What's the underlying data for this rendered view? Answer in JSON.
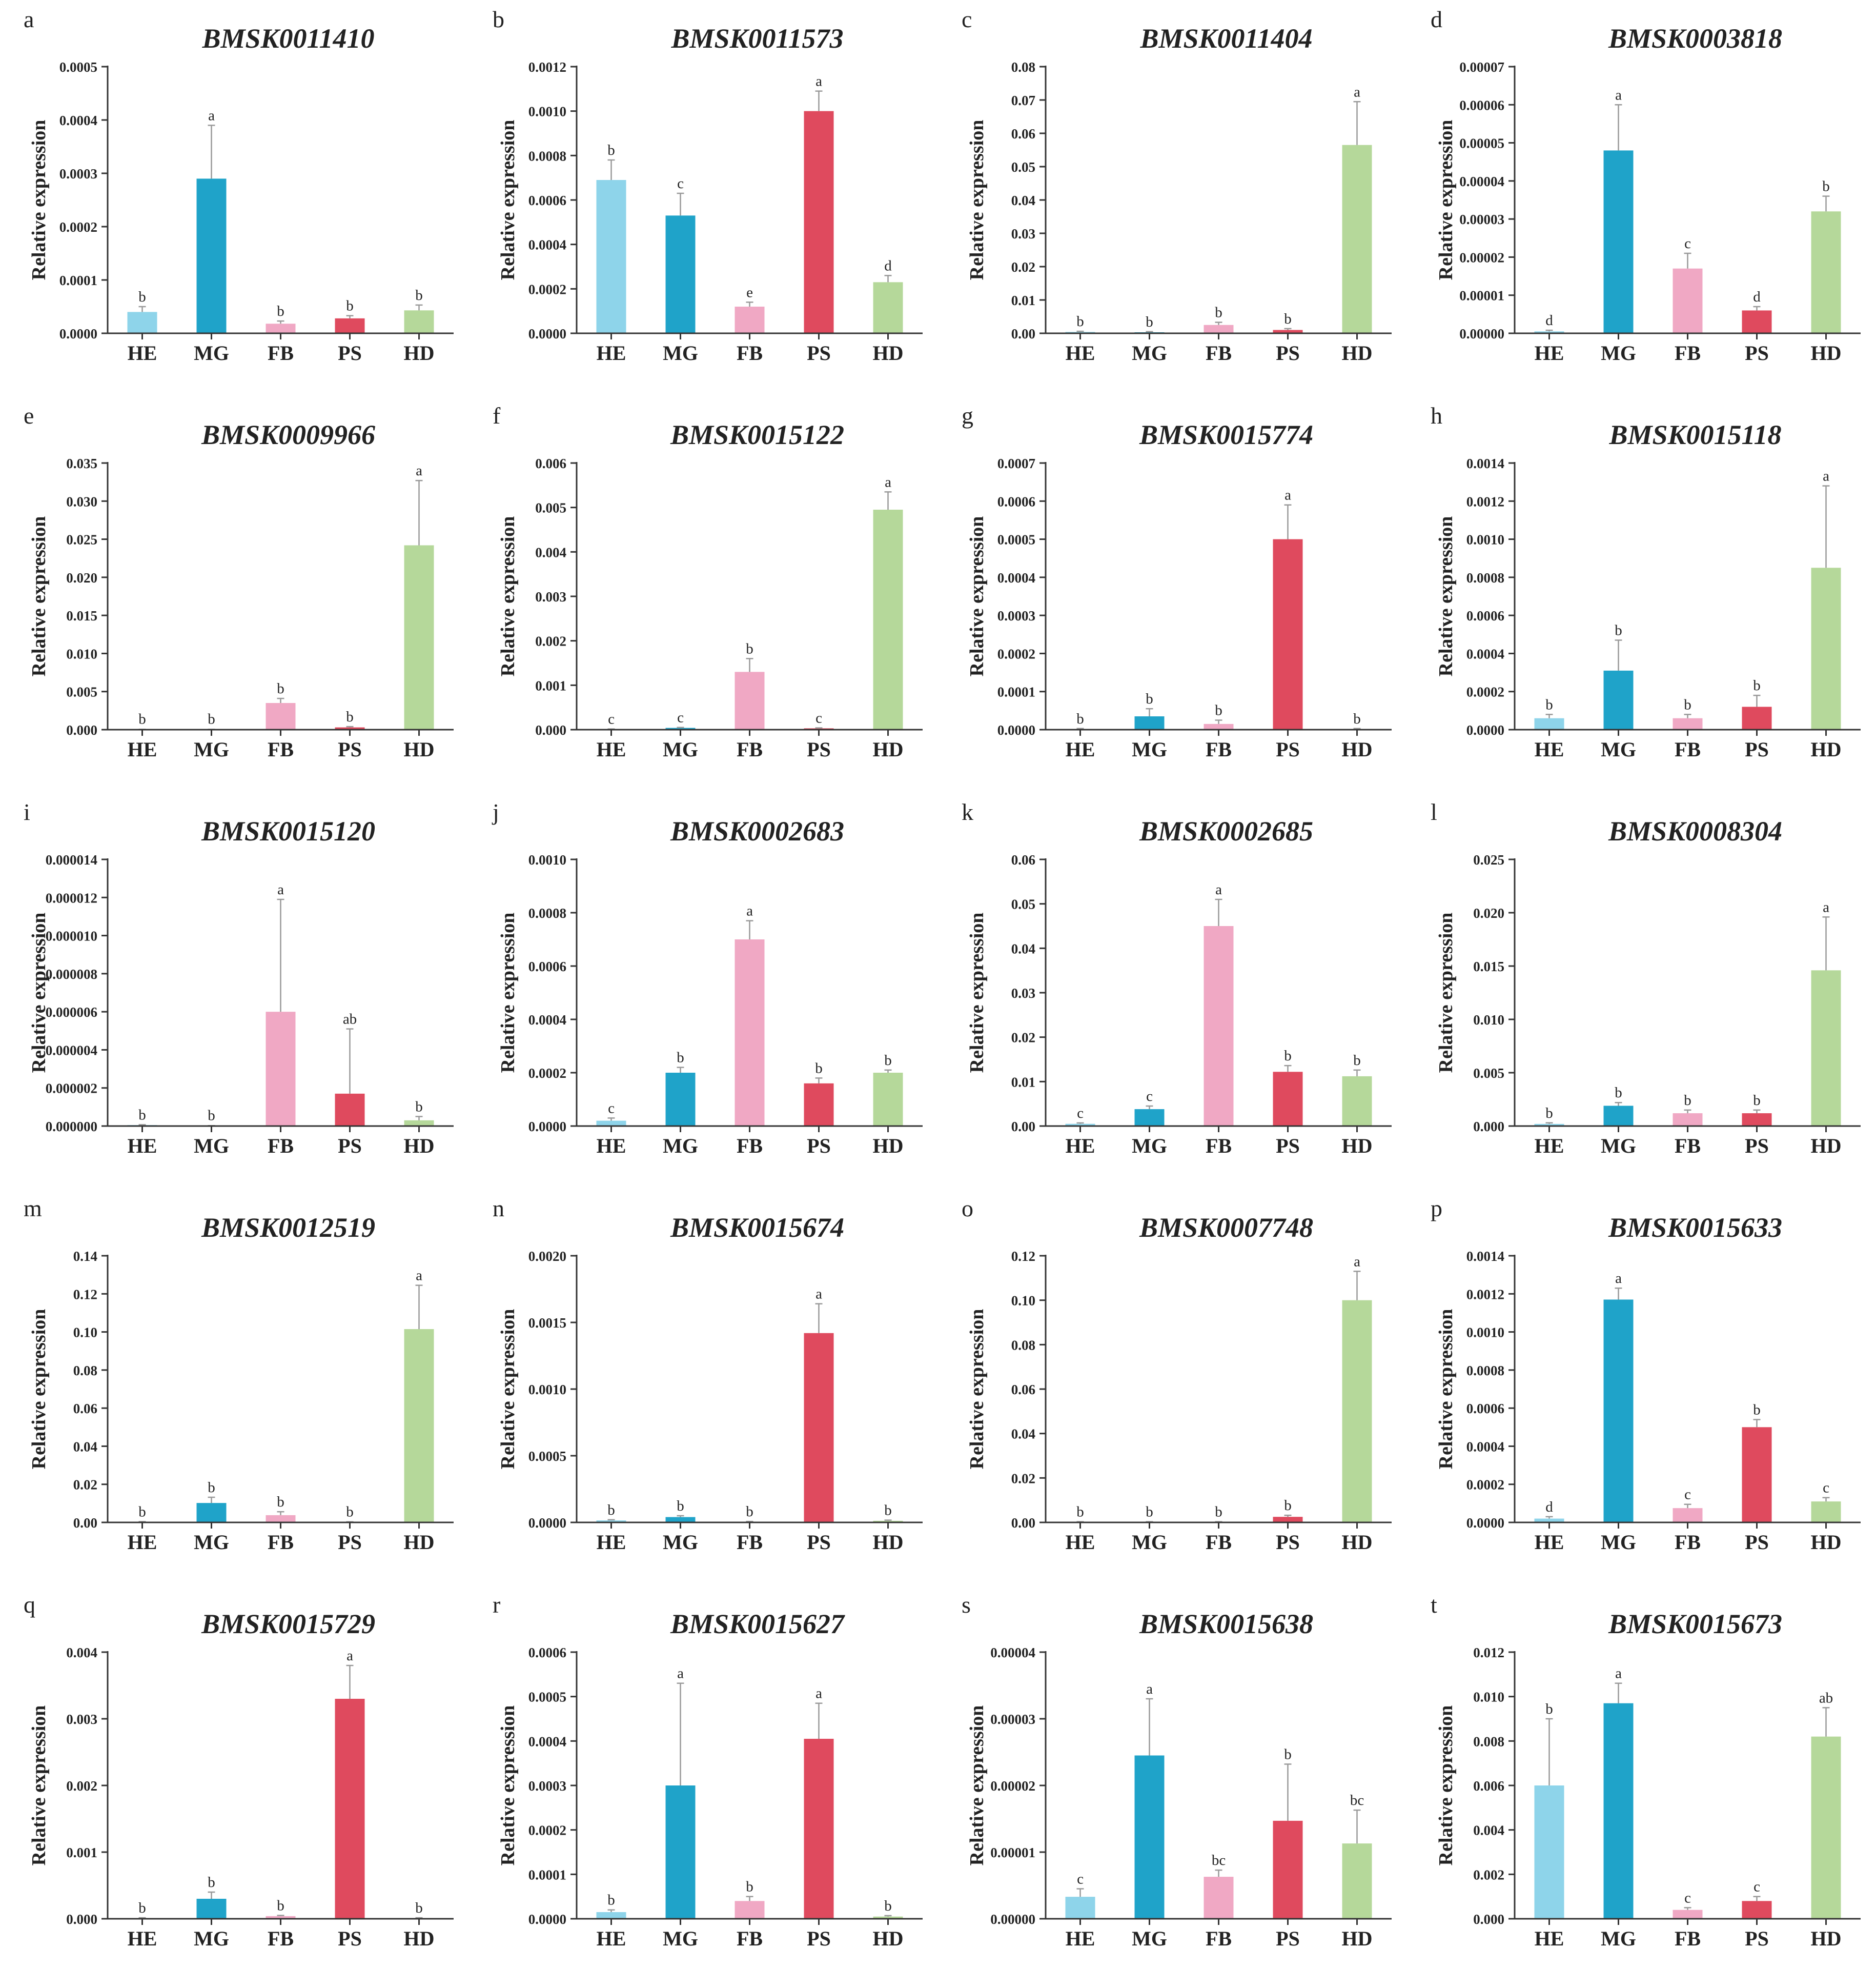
{
  "figure": {
    "ylabel": "Relative expression",
    "categories": [
      "HE",
      "MG",
      "FB",
      "PS",
      "HD"
    ],
    "colors": {
      "HE": "#8ed4ea",
      "MG": "#1fa3c9",
      "FB": "#f0a8c4",
      "PS": "#df4a5e",
      "HD": "#b5d89a"
    },
    "axis_color": "#333333",
    "error_color": "#999999"
  },
  "chart_data": [
    {
      "type": "bar",
      "panel": "a",
      "title": "BMSK0011410",
      "ylabel": "Relative expression",
      "categories": [
        "HE",
        "MG",
        "FB",
        "PS",
        "HD"
      ],
      "ylim": [
        0,
        0.0005
      ],
      "ticks": [
        "0.0000",
        "0.0001",
        "0.0002",
        "0.0003",
        "0.0004",
        "0.0005"
      ],
      "values": [
        4e-05,
        0.00029,
        1.8e-05,
        2.8e-05,
        4.3e-05
      ],
      "errors": [
        1e-05,
        0.0001,
        5e-06,
        5e-06,
        1e-05
      ],
      "letters": [
        "b",
        "a",
        "b",
        "b",
        "b"
      ]
    },
    {
      "type": "bar",
      "panel": "b",
      "title": "BMSK0011573",
      "ylabel": "Relative expression",
      "categories": [
        "HE",
        "MG",
        "FB",
        "PS",
        "HD"
      ],
      "ylim": [
        0,
        0.0012
      ],
      "ticks": [
        "0.0000",
        "0.0002",
        "0.0004",
        "0.0006",
        "0.0008",
        "0.0010",
        "0.0012"
      ],
      "values": [
        0.00069,
        0.00053,
        0.00012,
        0.001,
        0.00023
      ],
      "errors": [
        9e-05,
        0.0001,
        2e-05,
        9e-05,
        3e-05
      ],
      "letters": [
        "b",
        "c",
        "e",
        "a",
        "d"
      ]
    },
    {
      "type": "bar",
      "panel": "c",
      "title": "BMSK0011404",
      "ylabel": "Relative expression",
      "categories": [
        "HE",
        "MG",
        "FB",
        "PS",
        "HD"
      ],
      "ylim": [
        0,
        0.08
      ],
      "ticks": [
        "0.00",
        "0.01",
        "0.02",
        "0.03",
        "0.04",
        "0.05",
        "0.06",
        "0.07",
        "0.08"
      ],
      "values": [
        0.0004,
        0.0003,
        0.0025,
        0.001,
        0.0565
      ],
      "errors": [
        0.0002,
        0.0002,
        0.0008,
        0.0004,
        0.013
      ],
      "letters": [
        "b",
        "b",
        "b",
        "b",
        "a"
      ]
    },
    {
      "type": "bar",
      "panel": "d",
      "title": "BMSK0003818",
      "ylabel": "Relative expression",
      "categories": [
        "HE",
        "MG",
        "FB",
        "PS",
        "HD"
      ],
      "ylim": [
        0,
        7e-05
      ],
      "ticks": [
        "0.00000",
        "0.00001",
        "0.00002",
        "0.00003",
        "0.00004",
        "0.00005",
        "0.00006",
        "0.00007"
      ],
      "values": [
        5e-07,
        4.8e-05,
        1.7e-05,
        6e-06,
        3.2e-05
      ],
      "errors": [
        3e-07,
        1.2e-05,
        4e-06,
        1e-06,
        4e-06
      ],
      "letters": [
        "d",
        "a",
        "c",
        "d",
        "b"
      ]
    },
    {
      "type": "bar",
      "panel": "e",
      "title": "BMSK0009966",
      "ylabel": "Relative expression",
      "categories": [
        "HE",
        "MG",
        "FB",
        "PS",
        "HD"
      ],
      "ylim": [
        0,
        0.035
      ],
      "ticks": [
        "0.000",
        "0.005",
        "0.010",
        "0.015",
        "0.020",
        "0.025",
        "0.030",
        "0.035"
      ],
      "values": [
        3e-05,
        3e-05,
        0.0035,
        0.0003,
        0.0242
      ],
      "errors": [
        1e-05,
        1e-05,
        0.0006,
        0.0001,
        0.0085
      ],
      "letters": [
        "b",
        "b",
        "b",
        "b",
        "a"
      ]
    },
    {
      "type": "bar",
      "panel": "f",
      "title": "BMSK0015122",
      "ylabel": "Relative expression",
      "categories": [
        "HE",
        "MG",
        "FB",
        "PS",
        "HD"
      ],
      "ylim": [
        0,
        0.006
      ],
      "ticks": [
        "0.000",
        "0.001",
        "0.002",
        "0.003",
        "0.004",
        "0.005",
        "0.006"
      ],
      "values": [
        1e-05,
        4e-05,
        0.0013,
        3e-05,
        0.00495
      ],
      "errors": [
        5e-06,
        1e-05,
        0.0003,
        1e-05,
        0.0004
      ],
      "letters": [
        "c",
        "c",
        "b",
        "c",
        "a"
      ]
    },
    {
      "type": "bar",
      "panel": "g",
      "title": "BMSK0015774",
      "ylabel": "Relative expression",
      "categories": [
        "HE",
        "MG",
        "FB",
        "PS",
        "HD"
      ],
      "ylim": [
        0,
        0.0007
      ],
      "ticks": [
        "0.0000",
        "0.0001",
        "0.0002",
        "0.0003",
        "0.0004",
        "0.0005",
        "0.0006",
        "0.0007"
      ],
      "values": [
        2e-06,
        3.5e-05,
        1.5e-05,
        0.0005,
        2e-06
      ],
      "errors": [
        1e-06,
        2e-05,
        1e-05,
        9e-05,
        1e-06
      ],
      "letters": [
        "b",
        "b",
        "b",
        "a",
        "b"
      ]
    },
    {
      "type": "bar",
      "panel": "h",
      "title": "BMSK0015118",
      "ylabel": "Relative expression",
      "categories": [
        "HE",
        "MG",
        "FB",
        "PS",
        "HD"
      ],
      "ylim": [
        0,
        0.0014
      ],
      "ticks": [
        "0.0000",
        "0.0002",
        "0.0004",
        "0.0006",
        "0.0008",
        "0.0010",
        "0.0012",
        "0.0014"
      ],
      "values": [
        6e-05,
        0.00031,
        6e-05,
        0.00012,
        0.00085
      ],
      "errors": [
        2e-05,
        0.00016,
        2e-05,
        6e-05,
        0.00043
      ],
      "letters": [
        "b",
        "b",
        "b",
        "b",
        "a"
      ]
    },
    {
      "type": "bar",
      "panel": "i",
      "title": "BMSK0015120",
      "ylabel": "Relative expression",
      "categories": [
        "HE",
        "MG",
        "FB",
        "PS",
        "HD"
      ],
      "ylim": [
        0,
        1.4e-05
      ],
      "ticks": [
        "0.000000",
        "0.000002",
        "0.000004",
        "0.000006",
        "0.000008",
        "0.000010",
        "0.000012",
        "0.000014"
      ],
      "values": [
        5e-08,
        1e-08,
        6e-06,
        1.7e-06,
        3e-07
      ],
      "errors": [
        2e-08,
        1e-08,
        5.9e-06,
        3.4e-06,
        2e-07
      ],
      "letters": [
        "b",
        "b",
        "a",
        "ab",
        "b"
      ]
    },
    {
      "type": "bar",
      "panel": "j",
      "title": "BMSK0002683",
      "ylabel": "Relative expression",
      "categories": [
        "HE",
        "MG",
        "FB",
        "PS",
        "HD"
      ],
      "ylim": [
        0,
        0.001
      ],
      "ticks": [
        "0.0000",
        "0.0002",
        "0.0004",
        "0.0006",
        "0.0008",
        "0.0010"
      ],
      "values": [
        2e-05,
        0.0002,
        0.0007,
        0.00016,
        0.0002
      ],
      "errors": [
        1e-05,
        2e-05,
        7e-05,
        2e-05,
        1e-05
      ],
      "letters": [
        "c",
        "b",
        "a",
        "b",
        "b"
      ]
    },
    {
      "type": "bar",
      "panel": "k",
      "title": "BMSK0002685",
      "ylabel": "Relative expression",
      "categories": [
        "HE",
        "MG",
        "FB",
        "PS",
        "HD"
      ],
      "ylim": [
        0,
        0.06
      ],
      "ticks": [
        "0.00",
        "0.01",
        "0.02",
        "0.03",
        "0.04",
        "0.05",
        "0.06"
      ],
      "values": [
        0.0005,
        0.0038,
        0.045,
        0.0122,
        0.0112
      ],
      "errors": [
        0.0002,
        0.0007,
        0.006,
        0.0014,
        0.0014
      ],
      "letters": [
        "c",
        "c",
        "a",
        "b",
        "b"
      ]
    },
    {
      "type": "bar",
      "panel": "l",
      "title": "BMSK0008304",
      "ylabel": "Relative expression",
      "categories": [
        "HE",
        "MG",
        "FB",
        "PS",
        "HD"
      ],
      "ylim": [
        0,
        0.025
      ],
      "ticks": [
        "0.000",
        "0.005",
        "0.010",
        "0.015",
        "0.020",
        "0.025"
      ],
      "values": [
        0.0002,
        0.0019,
        0.0012,
        0.0012,
        0.0146
      ],
      "errors": [
        0.0001,
        0.0003,
        0.0003,
        0.0003,
        0.005
      ],
      "letters": [
        "b",
        "b",
        "b",
        "b",
        "a"
      ]
    },
    {
      "type": "bar",
      "panel": "m",
      "title": "BMSK0012519",
      "ylabel": "Relative expression",
      "categories": [
        "HE",
        "MG",
        "FB",
        "PS",
        "HD"
      ],
      "ylim": [
        0,
        0.14
      ],
      "ticks": [
        "0.00",
        "0.02",
        "0.04",
        "0.06",
        "0.08",
        "0.10",
        "0.12",
        "0.14"
      ],
      "values": [
        0.0003,
        0.0102,
        0.0038,
        0.0002,
        0.1015
      ],
      "errors": [
        0.0001,
        0.003,
        0.0018,
        0.0001,
        0.023
      ],
      "letters": [
        "b",
        "b",
        "b",
        "b",
        "a"
      ]
    },
    {
      "type": "bar",
      "panel": "n",
      "title": "BMSK0015674",
      "ylabel": "Relative expression",
      "categories": [
        "HE",
        "MG",
        "FB",
        "PS",
        "HD"
      ],
      "ylim": [
        0,
        0.002
      ],
      "ticks": [
        "0.0000",
        "0.0005",
        "0.0010",
        "0.0015",
        "0.0020"
      ],
      "values": [
        1.5e-05,
        4e-05,
        5e-06,
        0.00142,
        1.2e-05
      ],
      "errors": [
        5e-06,
        1e-05,
        2e-06,
        0.00022,
        5e-06
      ],
      "letters": [
        "b",
        "b",
        "b",
        "a",
        "b"
      ]
    },
    {
      "type": "bar",
      "panel": "o",
      "title": "BMSK0007748",
      "ylabel": "Relative expression",
      "categories": [
        "HE",
        "MG",
        "FB",
        "PS",
        "HD"
      ],
      "ylim": [
        0,
        0.12
      ],
      "ticks": [
        "0.00",
        "0.02",
        "0.04",
        "0.06",
        "0.08",
        "0.10",
        "0.12"
      ],
      "values": [
        0.0002,
        0.0002,
        0.0002,
        0.0025,
        0.1
      ],
      "errors": [
        0.0001,
        0.0001,
        0.0001,
        0.0007,
        0.013
      ],
      "letters": [
        "b",
        "b",
        "b",
        "b",
        "a"
      ]
    },
    {
      "type": "bar",
      "panel": "p",
      "title": "BMSK0015633",
      "ylabel": "Relative expression",
      "categories": [
        "HE",
        "MG",
        "FB",
        "PS",
        "HD"
      ],
      "ylim": [
        0,
        0.0014
      ],
      "ticks": [
        "0.0000",
        "0.0002",
        "0.0004",
        "0.0006",
        "0.0008",
        "0.0010",
        "0.0012",
        "0.0014"
      ],
      "values": [
        2e-05,
        0.00117,
        7.5e-05,
        0.0005,
        0.00011
      ],
      "errors": [
        1e-05,
        6e-05,
        2e-05,
        4e-05,
        2e-05
      ],
      "letters": [
        "d",
        "a",
        "c",
        "b",
        "c"
      ]
    },
    {
      "type": "bar",
      "panel": "q",
      "title": "BMSK0015729",
      "ylabel": "Relative expression",
      "categories": [
        "HE",
        "MG",
        "FB",
        "PS",
        "HD"
      ],
      "ylim": [
        0,
        0.004
      ],
      "ticks": [
        "0.000",
        "0.001",
        "0.002",
        "0.003",
        "0.004"
      ],
      "values": [
        1e-05,
        0.0003,
        4e-05,
        0.0033,
        1e-05
      ],
      "errors": [
        5e-06,
        0.0001,
        1e-05,
        0.0005,
        5e-06
      ],
      "letters": [
        "b",
        "b",
        "b",
        "a",
        "b"
      ]
    },
    {
      "type": "bar",
      "panel": "r",
      "title": "BMSK0015627",
      "ylabel": "Relative expression",
      "categories": [
        "HE",
        "MG",
        "FB",
        "PS",
        "HD"
      ],
      "ylim": [
        0,
        0.0006
      ],
      "ticks": [
        "0.0000",
        "0.0001",
        "0.0002",
        "0.0003",
        "0.0004",
        "0.0005",
        "0.0006"
      ],
      "values": [
        1.5e-05,
        0.0003,
        4e-05,
        0.000405,
        5e-06
      ],
      "errors": [
        5e-06,
        0.00023,
        1e-05,
        8e-05,
        2e-06
      ],
      "letters": [
        "b",
        "a",
        "b",
        "a",
        "b"
      ]
    },
    {
      "type": "bar",
      "panel": "s",
      "title": "BMSK0015638",
      "ylabel": "Relative expression",
      "categories": [
        "HE",
        "MG",
        "FB",
        "PS",
        "HD"
      ],
      "ylim": [
        0,
        4e-05
      ],
      "ticks": [
        "0.00000",
        "0.00001",
        "0.00002",
        "0.00003",
        "0.00004"
      ],
      "values": [
        3.3e-06,
        2.45e-05,
        6.3e-06,
        1.47e-05,
        1.13e-05
      ],
      "errors": [
        1.2e-06,
        8.5e-06,
        1e-06,
        8.5e-06,
        5e-06
      ],
      "letters": [
        "c",
        "a",
        "bc",
        "b",
        "bc"
      ]
    },
    {
      "type": "bar",
      "panel": "t",
      "title": "BMSK0015673",
      "ylabel": "Relative expression",
      "categories": [
        "HE",
        "MG",
        "FB",
        "PS",
        "HD"
      ],
      "ylim": [
        0,
        0.012
      ],
      "ticks": [
        "0.000",
        "0.002",
        "0.004",
        "0.006",
        "0.008",
        "0.010",
        "0.012"
      ],
      "values": [
        0.006,
        0.0097,
        0.0004,
        0.0008,
        0.0082
      ],
      "errors": [
        0.003,
        0.0009,
        0.0001,
        0.0002,
        0.0013
      ],
      "letters": [
        "b",
        "a",
        "c",
        "c",
        "ab"
      ]
    }
  ]
}
